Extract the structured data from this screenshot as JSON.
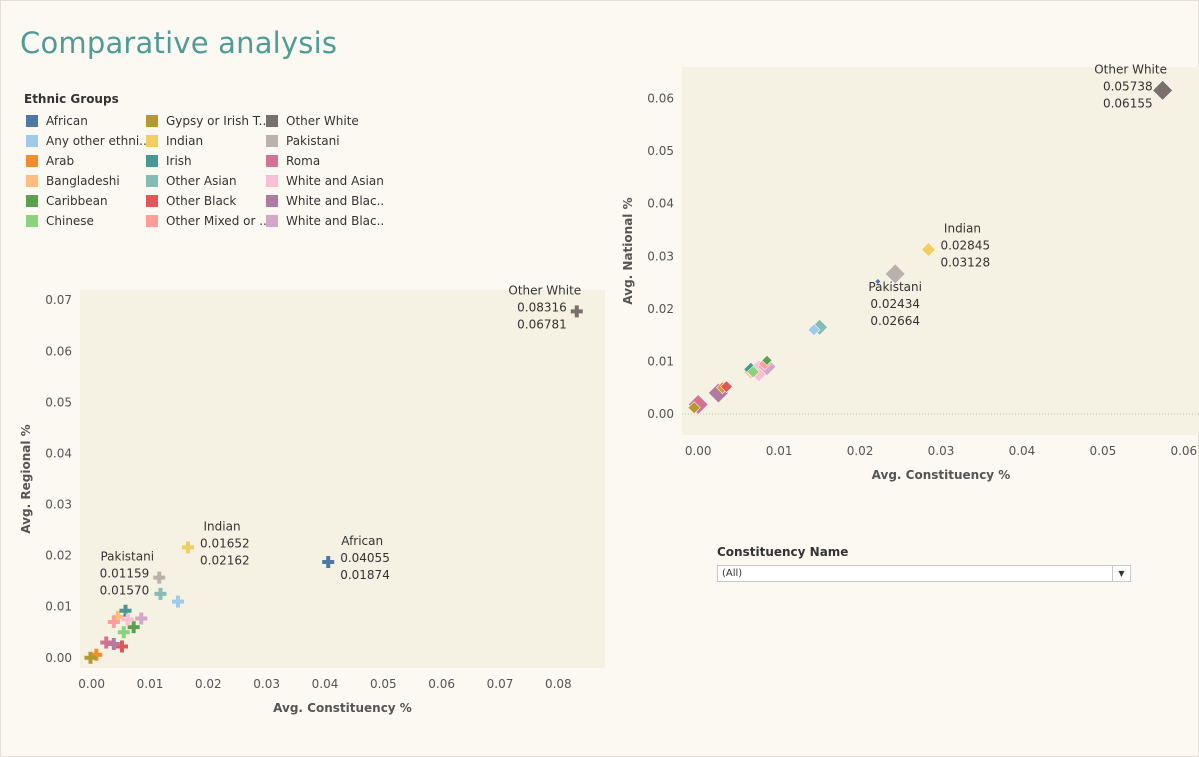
{
  "page": {
    "title": "Comparative analysis"
  },
  "legend": {
    "title": "Ethnic Groups",
    "items": [
      {
        "label": "African",
        "color": "#4e79a7"
      },
      {
        "label": "Any other ethni..",
        "color": "#a0cbe8"
      },
      {
        "label": "Arab",
        "color": "#f28e2b"
      },
      {
        "label": "Bangladeshi",
        "color": "#ffbe7d"
      },
      {
        "label": "Caribbean",
        "color": "#59a14f"
      },
      {
        "label": "Chinese",
        "color": "#8cd17d"
      },
      {
        "label": "Gypsy or Irish T..",
        "color": "#b6992d"
      },
      {
        "label": "Indian",
        "color": "#f1ce63"
      },
      {
        "label": "Irish",
        "color": "#499894"
      },
      {
        "label": "Other Asian",
        "color": "#86bcb6"
      },
      {
        "label": "Other Black",
        "color": "#e15759"
      },
      {
        "label": "Other Mixed or ..",
        "color": "#ff9d9a"
      },
      {
        "label": "Other White",
        "color": "#79706e"
      },
      {
        "label": "Pakistani",
        "color": "#bab0ac"
      },
      {
        "label": "Roma",
        "color": "#d37295"
      },
      {
        "label": "White and Asian",
        "color": "#fabfd2"
      },
      {
        "label": "White and Blac..",
        "color": "#b07aa1"
      },
      {
        "label": "White and Blac..",
        "color": "#d4a6c8"
      }
    ]
  },
  "filter": {
    "label": "Constituency Name",
    "value": "(All)"
  },
  "chart_data": [
    {
      "type": "scatter",
      "marker": "plus",
      "xlabel": "Avg. Constituency %",
      "ylabel": "Avg. Regional %",
      "xlim": [
        -0.002,
        0.088
      ],
      "ylim": [
        -0.002,
        0.072
      ],
      "xticks": [
        "0.00",
        "0.01",
        "0.02",
        "0.03",
        "0.04",
        "0.05",
        "0.06",
        "0.07",
        "0.08"
      ],
      "yticks": [
        "0.00",
        "0.01",
        "0.02",
        "0.03",
        "0.04",
        "0.05",
        "0.06",
        "0.07"
      ],
      "points": [
        {
          "group": "African",
          "x": 0.04055,
          "y": 0.01874,
          "color": "#4e79a7",
          "labels": [
            "African",
            "0.04055",
            "0.01874"
          ],
          "label_pos": "right-above"
        },
        {
          "group": "Any other ethnic group",
          "x": 0.0148,
          "y": 0.011,
          "color": "#a0cbe8"
        },
        {
          "group": "Arab",
          "x": 0.0008,
          "y": 0.0006,
          "color": "#f28e2b"
        },
        {
          "group": "Bangladeshi",
          "x": 0.0045,
          "y": 0.008,
          "color": "#ffbe7d"
        },
        {
          "group": "Caribbean",
          "x": 0.0072,
          "y": 0.006,
          "color": "#59a14f"
        },
        {
          "group": "Chinese",
          "x": 0.0055,
          "y": 0.005,
          "color": "#8cd17d"
        },
        {
          "group": "Gypsy or Irish Traveller",
          "x": -0.0002,
          "y": 0.0,
          "color": "#b6992d"
        },
        {
          "group": "Indian",
          "x": 0.01652,
          "y": 0.02162,
          "color": "#f1ce63",
          "labels": [
            "Indian",
            "0.01652",
            "0.02162"
          ],
          "label_pos": "right-above"
        },
        {
          "group": "Irish",
          "x": 0.0058,
          "y": 0.0092,
          "color": "#499894"
        },
        {
          "group": "Other Asian",
          "x": 0.0118,
          "y": 0.0125,
          "color": "#86bcb6"
        },
        {
          "group": "Other Black",
          "x": 0.0052,
          "y": 0.0022,
          "color": "#e15759"
        },
        {
          "group": "Other Mixed or Multiple",
          "x": 0.0038,
          "y": 0.007,
          "color": "#ff9d9a"
        },
        {
          "group": "Other White",
          "x": 0.08316,
          "y": 0.06781,
          "color": "#79706e",
          "labels": [
            "Other White",
            "0.08316",
            "0.06781"
          ],
          "label_pos": "left-above"
        },
        {
          "group": "Pakistani",
          "x": 0.01159,
          "y": 0.0157,
          "color": "#bab0ac",
          "labels": [
            "Pakistani",
            "0.01159",
            "0.01570"
          ],
          "label_pos": "left-above"
        },
        {
          "group": "Roma",
          "x": 0.0025,
          "y": 0.003,
          "color": "#d37295"
        },
        {
          "group": "White and Asian",
          "x": 0.0062,
          "y": 0.0075,
          "color": "#fabfd2"
        },
        {
          "group": "White and Black African",
          "x": 0.0038,
          "y": 0.0027,
          "color": "#b07aa1"
        },
        {
          "group": "White and Black Caribbean",
          "x": 0.0085,
          "y": 0.0077,
          "color": "#d4a6c8"
        }
      ]
    },
    {
      "type": "scatter",
      "marker": "diamond",
      "xlabel": "Avg. Constituency %",
      "ylabel": "Avg. National %",
      "xlim": [
        -0.002,
        0.062
      ],
      "ylim": [
        -0.004,
        0.066
      ],
      "xticks": [
        "0.00",
        "0.01",
        "0.02",
        "0.03",
        "0.04",
        "0.05",
        "0.06"
      ],
      "yticks": [
        "0.00",
        "0.01",
        "0.02",
        "0.03",
        "0.04",
        "0.05",
        "0.06"
      ],
      "points": [
        {
          "group": "African",
          "x": 0.0222,
          "y": 0.0252,
          "color": "#4e79a7",
          "size": 3
        },
        {
          "group": "Any other ethnic group",
          "x": 0.0143,
          "y": 0.016,
          "color": "#a0cbe8",
          "size": 6
        },
        {
          "group": "Arab",
          "x": 0.003,
          "y": 0.005,
          "color": "#f28e2b",
          "size": 6
        },
        {
          "group": "Bangladeshi",
          "x": 0.0065,
          "y": 0.008,
          "color": "#ffbe7d",
          "size": 7
        },
        {
          "group": "Caribbean",
          "x": 0.0085,
          "y": 0.0102,
          "color": "#59a14f",
          "size": 5
        },
        {
          "group": "Chinese",
          "x": 0.0068,
          "y": 0.008,
          "color": "#8cd17d",
          "size": 6
        },
        {
          "group": "Gypsy or Irish Traveller",
          "x": -0.0005,
          "y": 0.0012,
          "color": "#b6992d",
          "size": 6
        },
        {
          "group": "Indian",
          "x": 0.02845,
          "y": 0.03128,
          "color": "#f1ce63",
          "size": 7,
          "labels": [
            "Indian",
            "0.02845",
            "0.03128"
          ],
          "label_pos": "right-above"
        },
        {
          "group": "Irish",
          "x": 0.0065,
          "y": 0.0085,
          "color": "#499894",
          "size": 7
        },
        {
          "group": "Other Asian",
          "x": 0.015,
          "y": 0.0165,
          "color": "#86bcb6",
          "size": 8
        },
        {
          "group": "Other Black",
          "x": 0.0035,
          "y": 0.0052,
          "color": "#e15759",
          "size": 6
        },
        {
          "group": "Other Mixed or Multiple",
          "x": 0.0082,
          "y": 0.0095,
          "color": "#ff9d9a",
          "size": 6
        },
        {
          "group": "Other White",
          "x": 0.05738,
          "y": 0.06155,
          "color": "#79706e",
          "size": 10,
          "labels": [
            "Other White",
            "0.05738",
            "0.06155"
          ],
          "label_pos": "left-above"
        },
        {
          "group": "Pakistani",
          "x": 0.02434,
          "y": 0.02664,
          "color": "#bab0ac",
          "size": 10,
          "labels": [
            "Pakistani",
            "0.02434",
            "0.02664"
          ],
          "label_pos": "below"
        },
        {
          "group": "Roma",
          "x": 0.0,
          "y": 0.0018,
          "color": "#d37295",
          "size": 10
        },
        {
          "group": "White and Asian",
          "x": 0.0075,
          "y": 0.0082,
          "color": "#fabfd2",
          "size": 11
        },
        {
          "group": "White and Black African",
          "x": 0.0025,
          "y": 0.004,
          "color": "#b07aa1",
          "size": 10
        },
        {
          "group": "White and Black Caribbean",
          "x": 0.0085,
          "y": 0.009,
          "color": "#d4a6c8",
          "size": 9
        }
      ]
    }
  ]
}
